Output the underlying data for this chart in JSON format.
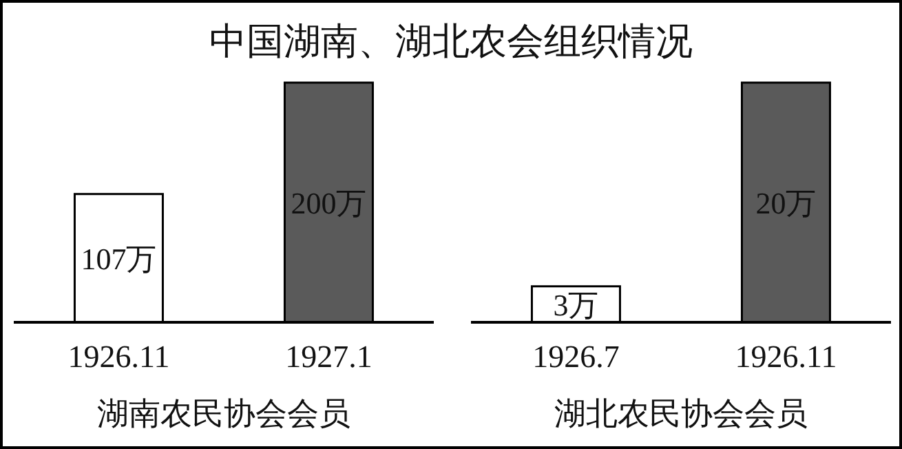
{
  "chart_data": [
    {
      "type": "bar",
      "title": "中国湖南、湖北农会组织情况",
      "categories": [
        "1926.11",
        "1927.1"
      ],
      "values": [
        107,
        200
      ],
      "value_labels": [
        "107万",
        "200万"
      ],
      "colors": [
        "#ffffff",
        "#5a5a5a"
      ],
      "xlabel": "湖南农民协会会员"
    },
    {
      "type": "bar",
      "categories": [
        "1926.7",
        "1926.11"
      ],
      "values": [
        3,
        20
      ],
      "value_labels": [
        "3万",
        "20万"
      ],
      "colors": [
        "#ffffff",
        "#5a5a5a"
      ],
      "xlabel": "湖北农民协会会员"
    }
  ]
}
